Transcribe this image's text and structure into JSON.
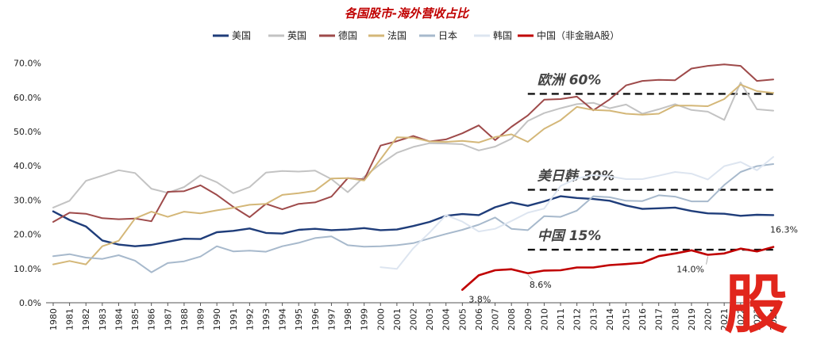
{
  "chart_data": {
    "type": "line",
    "title": "各国股市-海外营收占比",
    "xlabel": "",
    "ylabel": "",
    "ylim": [
      0,
      75
    ],
    "yticks": [
      "0.0%",
      "10.0%",
      "20.0%",
      "30.0%",
      "40.0%",
      "50.0%",
      "60.0%",
      "70.0%"
    ],
    "grid": false,
    "legend_position": "top",
    "x": [
      "1980",
      "1981",
      "1982",
      "1983",
      "1984",
      "1985",
      "1986",
      "1987",
      "1988",
      "1989",
      "1990",
      "1991",
      "1992",
      "1993",
      "1994",
      "1995",
      "1996",
      "1997",
      "1998",
      "1999",
      "2000",
      "2001",
      "2002",
      "2003",
      "2004",
      "2005",
      "2006",
      "2007",
      "2008",
      "2009",
      "2010",
      "2011",
      "2012",
      "2013",
      "2014",
      "2015",
      "2016",
      "2017",
      "2018",
      "2019",
      "2020",
      "2021",
      "2022",
      "2023",
      "2024"
    ],
    "series": [
      {
        "name": "美国",
        "color": "#1f3d7a",
        "width": 2.4,
        "values": [
          26.7,
          24.2,
          22.3,
          18.2,
          17.0,
          16.5,
          16.9,
          17.8,
          18.7,
          18.6,
          20.6,
          21.0,
          21.7,
          20.4,
          20.2,
          21.3,
          21.6,
          21.2,
          21.4,
          21.8,
          21.2,
          21.4,
          22.4,
          23.6,
          25.4,
          25.9,
          25.6,
          27.9,
          29.3,
          28.3,
          29.6,
          31.1,
          30.6,
          30.3,
          29.8,
          28.4,
          27.4,
          27.6,
          27.8,
          26.8,
          26.1,
          26.0,
          25.4,
          25.7,
          25.6
        ]
      },
      {
        "name": "英国",
        "color": "#c3c3c3",
        "width": 2,
        "values": [
          27.8,
          29.8,
          35.6,
          37.1,
          38.7,
          37.9,
          33.3,
          32.1,
          33.8,
          37.2,
          35.2,
          32.0,
          33.8,
          38.0,
          38.5,
          38.3,
          38.6,
          36.1,
          32.3,
          36.8,
          40.5,
          43.8,
          45.5,
          46.6,
          46.5,
          46.3,
          44.5,
          45.6,
          47.9,
          53.1,
          55.4,
          56.8,
          58.0,
          58.4,
          56.8,
          57.9,
          55.2,
          56.5,
          58.0,
          56.3,
          55.8,
          53.4,
          64.3,
          56.5,
          56.1
        ]
      },
      {
        "name": "德国",
        "color": "#9e4a4a",
        "width": 2,
        "values": [
          23.6,
          26.3,
          26.0,
          24.7,
          24.4,
          24.6,
          23.8,
          32.4,
          32.6,
          34.3,
          31.5,
          28.0,
          25.0,
          28.9,
          27.3,
          28.9,
          29.3,
          31.0,
          36.4,
          36.0,
          45.9,
          47.2,
          48.7,
          47.1,
          47.7,
          49.5,
          51.8,
          47.5,
          51.4,
          54.7,
          59.3,
          59.5,
          60.2,
          56.2,
          59.4,
          63.5,
          64.8,
          65.1,
          65.0,
          68.4,
          69.2,
          69.6,
          69.2,
          64.8,
          65.2
        ]
      },
      {
        "name": "法国",
        "color": "#d4b778",
        "width": 2,
        "values": [
          11.2,
          12.2,
          11.2,
          16.5,
          18.1,
          24.6,
          26.6,
          25.1,
          26.6,
          26.1,
          27.0,
          27.7,
          28.6,
          28.9,
          31.5,
          32.0,
          32.7,
          36.3,
          36.4,
          35.7,
          41.9,
          48.3,
          48.2,
          47.1,
          47.0,
          47.3,
          46.8,
          48.4,
          49.2,
          47.0,
          50.8,
          53.3,
          57.2,
          56.3,
          56.1,
          55.2,
          54.9,
          55.2,
          57.6,
          57.6,
          57.4,
          59.5,
          63.7,
          61.8,
          61.3
        ]
      },
      {
        "name": "日本",
        "color": "#a7b9cc",
        "width": 2,
        "values": [
          13.6,
          14.2,
          13.2,
          12.8,
          13.9,
          12.3,
          8.9,
          11.6,
          12.1,
          13.5,
          16.5,
          15.0,
          15.2,
          14.9,
          16.5,
          17.5,
          18.9,
          19.4,
          16.8,
          16.4,
          16.5,
          16.8,
          17.4,
          18.8,
          20.1,
          21.3,
          22.8,
          24.9,
          21.6,
          21.2,
          25.3,
          25.1,
          26.9,
          31.1,
          30.8,
          29.8,
          29.7,
          31.4,
          31.0,
          29.6,
          29.6,
          34.4,
          38.2,
          39.9,
          40.5
        ]
      },
      {
        "name": "韩国",
        "color": "#dde5f0",
        "width": 2,
        "values": [
          null,
          null,
          null,
          null,
          null,
          null,
          null,
          null,
          null,
          null,
          null,
          null,
          null,
          null,
          null,
          null,
          null,
          null,
          null,
          null,
          10.4,
          9.9,
          15.9,
          20.5,
          25.6,
          23.7,
          20.8,
          21.6,
          23.9,
          26.3,
          27.5,
          34.1,
          36.3,
          37.3,
          36.9,
          36.1,
          36.1,
          37.1,
          38.2,
          37.7,
          36.0,
          39.9,
          41.1,
          38.7,
          42.6
        ]
      },
      {
        "name": "中国（非金融A股）",
        "color": "#c00000",
        "width": 2.6,
        "values": [
          null,
          null,
          null,
          null,
          null,
          null,
          null,
          null,
          null,
          null,
          null,
          null,
          null,
          null,
          null,
          null,
          null,
          null,
          null,
          null,
          null,
          null,
          null,
          null,
          null,
          3.8,
          8.0,
          9.5,
          9.8,
          8.6,
          9.4,
          9.5,
          10.3,
          10.3,
          11.0,
          11.3,
          11.7,
          13.6,
          14.4,
          15.3,
          14.0,
          14.4,
          15.8,
          15.0,
          16.3
        ]
      }
    ],
    "reference_lines": [
      {
        "label": "欧洲 60%",
        "value": 61,
        "from": "2009",
        "to": "2024"
      },
      {
        "label": "美日韩 30%",
        "value": 33,
        "from": "2009",
        "to": "2024"
      },
      {
        "label": "中国 15%",
        "value": 15.5,
        "from": "2009",
        "to": "2024"
      }
    ],
    "data_labels": [
      {
        "text": "3.8%",
        "x": "2005",
        "series": "中国（非金融A股）"
      },
      {
        "text": "8.6%",
        "x": "2009",
        "series": "中国（非金融A股）"
      },
      {
        "text": "14.0%",
        "x": "2020",
        "series": "中国（非金融A股）"
      },
      {
        "text": "16.3%",
        "x": "2024",
        "series": "中国（非金融A股）"
      }
    ],
    "watermark": "股"
  }
}
